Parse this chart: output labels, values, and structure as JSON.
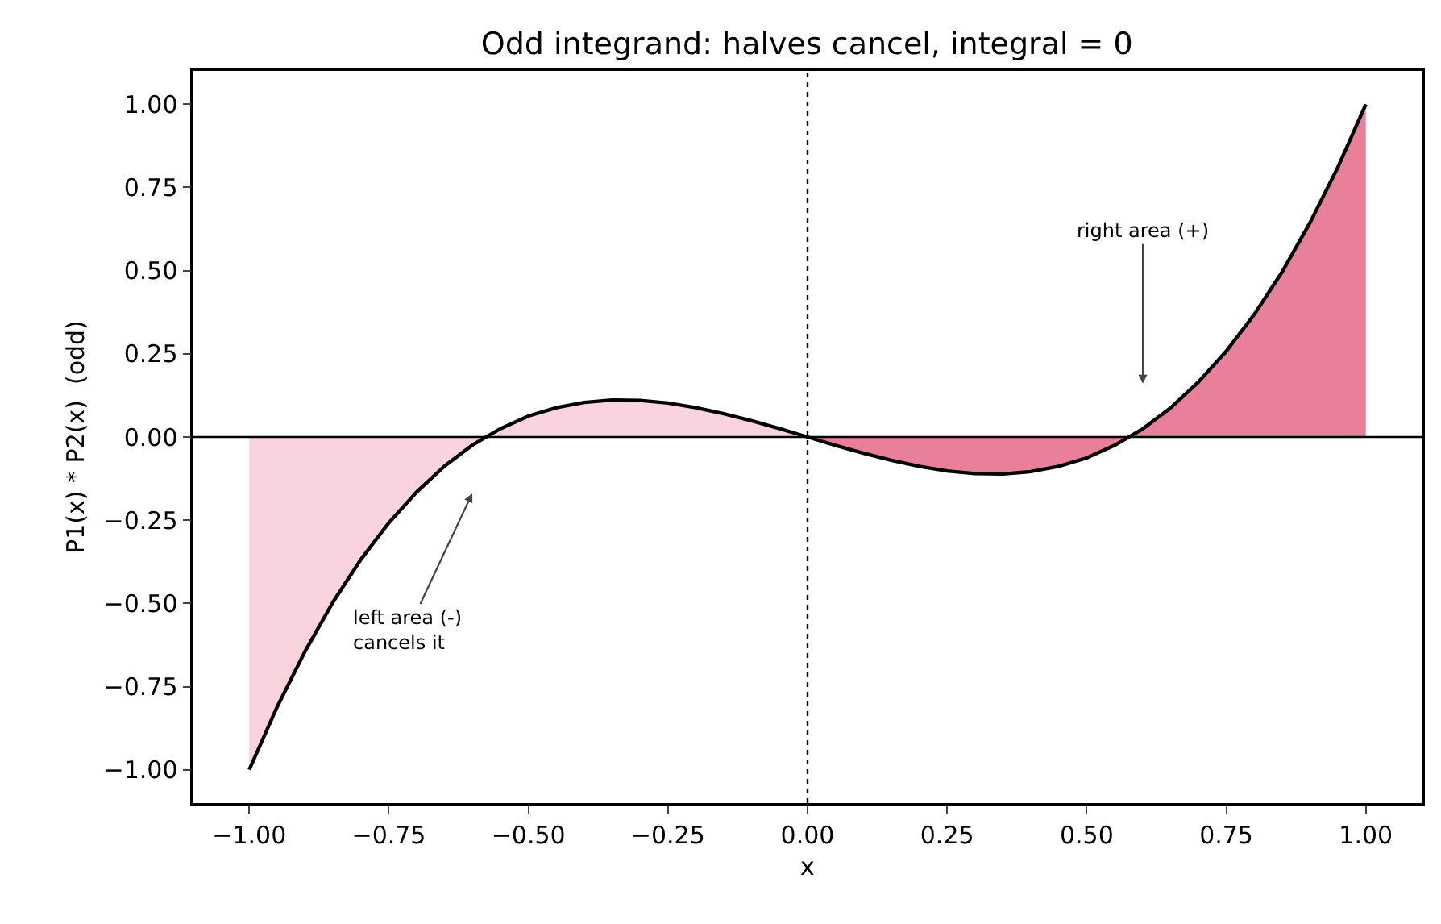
{
  "chart_data": {
    "type": "line",
    "title": "Odd integrand: halves cancel, integral = 0",
    "xlabel": "x",
    "ylabel": "P1(x) * P2(x)  (odd)",
    "xlim": [
      -1.1,
      1.1
    ],
    "ylim": [
      -1.1,
      1.1
    ],
    "xticks": [
      {
        "value": -1,
        "label": "−1.00"
      },
      {
        "value": -0.75,
        "label": "−0.75"
      },
      {
        "value": -0.5,
        "label": "−0.50"
      },
      {
        "value": -0.25,
        "label": "−0.25"
      },
      {
        "value": 0,
        "label": "0.00"
      },
      {
        "value": 0.25,
        "label": "0.25"
      },
      {
        "value": 0.5,
        "label": "0.50"
      },
      {
        "value": 0.75,
        "label": "0.75"
      },
      {
        "value": 1,
        "label": "1.00"
      }
    ],
    "yticks": [
      {
        "value": -1,
        "label": "−1.00"
      },
      {
        "value": -0.75,
        "label": "−0.75"
      },
      {
        "value": -0.5,
        "label": "−0.50"
      },
      {
        "value": -0.25,
        "label": "−0.25"
      },
      {
        "value": 0,
        "label": "0.00"
      },
      {
        "value": 0.25,
        "label": "0.25"
      },
      {
        "value": 0.5,
        "label": "0.50"
      },
      {
        "value": 0.75,
        "label": "0.75"
      },
      {
        "value": 1,
        "label": "1.00"
      }
    ],
    "grid": false,
    "series": [
      {
        "type": "area",
        "color": "#f9d3dd",
        "x": [
          -1,
          -0.95,
          -0.9,
          -0.85,
          -0.8,
          -0.75,
          -0.7,
          -0.65,
          -0.6,
          -0.55,
          -0.5,
          -0.45,
          -0.4,
          -0.35,
          -0.3,
          -0.25,
          -0.2,
          -0.15,
          -0.1,
          -0.05,
          0
        ],
        "values": [
          -1,
          -0.811,
          -0.644,
          -0.496,
          -0.368,
          -0.258,
          -0.165,
          -0.087,
          -0.024,
          0.025,
          0.063,
          0.088,
          0.104,
          0.111,
          0.11,
          0.102,
          0.088,
          0.07,
          0.049,
          0.025,
          0
        ]
      },
      {
        "type": "area",
        "color": "#e8809a",
        "x": [
          0,
          0.05,
          0.1,
          0.15,
          0.2,
          0.25,
          0.3,
          0.35,
          0.4,
          0.45,
          0.5,
          0.55,
          0.6,
          0.65,
          0.7,
          0.75,
          0.8,
          0.85,
          0.9,
          0.95,
          1
        ],
        "values": [
          0,
          -0.025,
          -0.049,
          -0.07,
          -0.088,
          -0.102,
          -0.11,
          -0.111,
          -0.104,
          -0.088,
          -0.063,
          -0.025,
          0.024,
          0.087,
          0.165,
          0.258,
          0.368,
          0.496,
          0.644,
          0.811,
          1
        ]
      },
      {
        "color": "#000000",
        "x": [
          -1,
          -0.95,
          -0.9,
          -0.85,
          -0.8,
          -0.75,
          -0.7,
          -0.65,
          -0.6,
          -0.55,
          -0.5,
          -0.45,
          -0.4,
          -0.35,
          -0.3,
          -0.25,
          -0.2,
          -0.15,
          -0.1,
          -0.05,
          0,
          0.05,
          0.1,
          0.15,
          0.2,
          0.25,
          0.3,
          0.35,
          0.4,
          0.45,
          0.5,
          0.55,
          0.6,
          0.65,
          0.7,
          0.75,
          0.8,
          0.85,
          0.9,
          0.95,
          1
        ],
        "values": [
          -1,
          -0.811,
          -0.644,
          -0.496,
          -0.368,
          -0.258,
          -0.165,
          -0.087,
          -0.024,
          0.025,
          0.063,
          0.088,
          0.104,
          0.111,
          0.11,
          0.102,
          0.088,
          0.07,
          0.049,
          0.025,
          0,
          -0.025,
          -0.049,
          -0.07,
          -0.088,
          -0.102,
          -0.11,
          -0.111,
          -0.104,
          -0.088,
          -0.063,
          -0.025,
          0.024,
          0.087,
          0.165,
          0.258,
          0.368,
          0.496,
          0.644,
          0.811,
          1
        ]
      }
    ],
    "ref_lines": [
      {
        "axis": "y",
        "value": 0,
        "color": "#000000",
        "line_style": "solid"
      },
      {
        "axis": "x",
        "value": 0,
        "color": "#000000",
        "line_style": "dotted"
      }
    ],
    "annotations": [
      "right area (+)",
      "left area (-)\ncancels it"
    ]
  }
}
